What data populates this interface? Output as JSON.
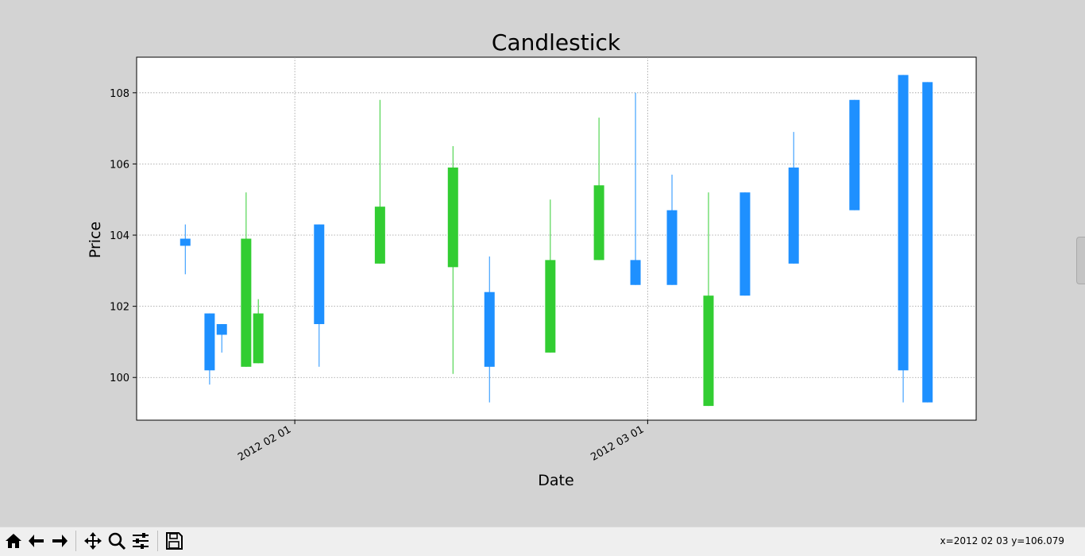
{
  "chart_data": {
    "type": "candlestick",
    "title": "Candlestick",
    "xlabel": "Date",
    "ylabel": "Price",
    "ylim": [
      98.8,
      109.0
    ],
    "xlim": [
      "2012-01-19",
      "2012-03-28"
    ],
    "yticks": [
      100,
      102,
      104,
      106,
      108
    ],
    "xticks": [
      {
        "date": "2012-02-01",
        "label": "2012 02 01"
      },
      {
        "date": "2012-03-01",
        "label": "2012 03 01"
      }
    ],
    "grid": true,
    "colors": {
      "up": "#32cd32",
      "down": "#1e90ff"
    },
    "candles": [
      {
        "date": "2012-01-23",
        "open": 103.9,
        "close": 103.7,
        "high": 104.3,
        "low": 102.9
      },
      {
        "date": "2012-01-25",
        "open": 101.8,
        "close": 100.2,
        "high": 101.8,
        "low": 99.8
      },
      {
        "date": "2012-01-26",
        "open": 101.5,
        "close": 101.2,
        "high": 101.5,
        "low": 100.7
      },
      {
        "date": "2012-01-28",
        "open": 100.3,
        "close": 103.9,
        "high": 105.2,
        "low": 100.3
      },
      {
        "date": "2012-01-29",
        "open": 100.4,
        "close": 101.8,
        "high": 102.2,
        "low": 100.4
      },
      {
        "date": "2012-02-03",
        "open": 104.3,
        "close": 101.5,
        "high": 104.3,
        "low": 100.3
      },
      {
        "date": "2012-02-08",
        "open": 103.2,
        "close": 104.8,
        "high": 107.8,
        "low": 103.2
      },
      {
        "date": "2012-02-14",
        "open": 103.1,
        "close": 105.9,
        "high": 106.5,
        "low": 100.1
      },
      {
        "date": "2012-02-17",
        "open": 102.4,
        "close": 100.3,
        "high": 103.4,
        "low": 99.3
      },
      {
        "date": "2012-02-22",
        "open": 100.7,
        "close": 103.3,
        "high": 105.0,
        "low": 100.7
      },
      {
        "date": "2012-02-26",
        "open": 103.3,
        "close": 105.4,
        "high": 107.3,
        "low": 103.3
      },
      {
        "date": "2012-02-29",
        "open": 103.3,
        "close": 102.6,
        "high": 108.0,
        "low": 102.6
      },
      {
        "date": "2012-03-03",
        "open": 104.7,
        "close": 102.6,
        "high": 105.7,
        "low": 102.6
      },
      {
        "date": "2012-03-06",
        "open": 99.2,
        "close": 102.3,
        "high": 105.2,
        "low": 99.2
      },
      {
        "date": "2012-03-09",
        "open": 105.2,
        "close": 102.3,
        "high": 105.2,
        "low": 102.3
      },
      {
        "date": "2012-03-13",
        "open": 105.9,
        "close": 103.2,
        "high": 106.9,
        "low": 103.2
      },
      {
        "date": "2012-03-18",
        "open": 107.8,
        "close": 104.7,
        "high": 107.8,
        "low": 104.7
      },
      {
        "date": "2012-03-22",
        "open": 108.5,
        "close": 100.2,
        "high": 108.5,
        "low": 99.3
      },
      {
        "date": "2012-03-24",
        "open": 108.3,
        "close": 99.3,
        "high": 108.3,
        "low": 99.3
      }
    ]
  },
  "toolbar": {
    "buttons": [
      {
        "name": "home-button",
        "icon": "home-icon"
      },
      {
        "name": "back-button",
        "icon": "arrow-left-icon"
      },
      {
        "name": "forward-button",
        "icon": "arrow-right-icon"
      },
      {
        "name": "pan-button",
        "icon": "move-icon"
      },
      {
        "name": "zoom-button",
        "icon": "magnifier-icon"
      },
      {
        "name": "configure-subplots-button",
        "icon": "sliders-icon"
      },
      {
        "name": "save-button",
        "icon": "floppy-disk-icon"
      }
    ],
    "coordinates": "x=2012 02 03 y=106.079"
  }
}
